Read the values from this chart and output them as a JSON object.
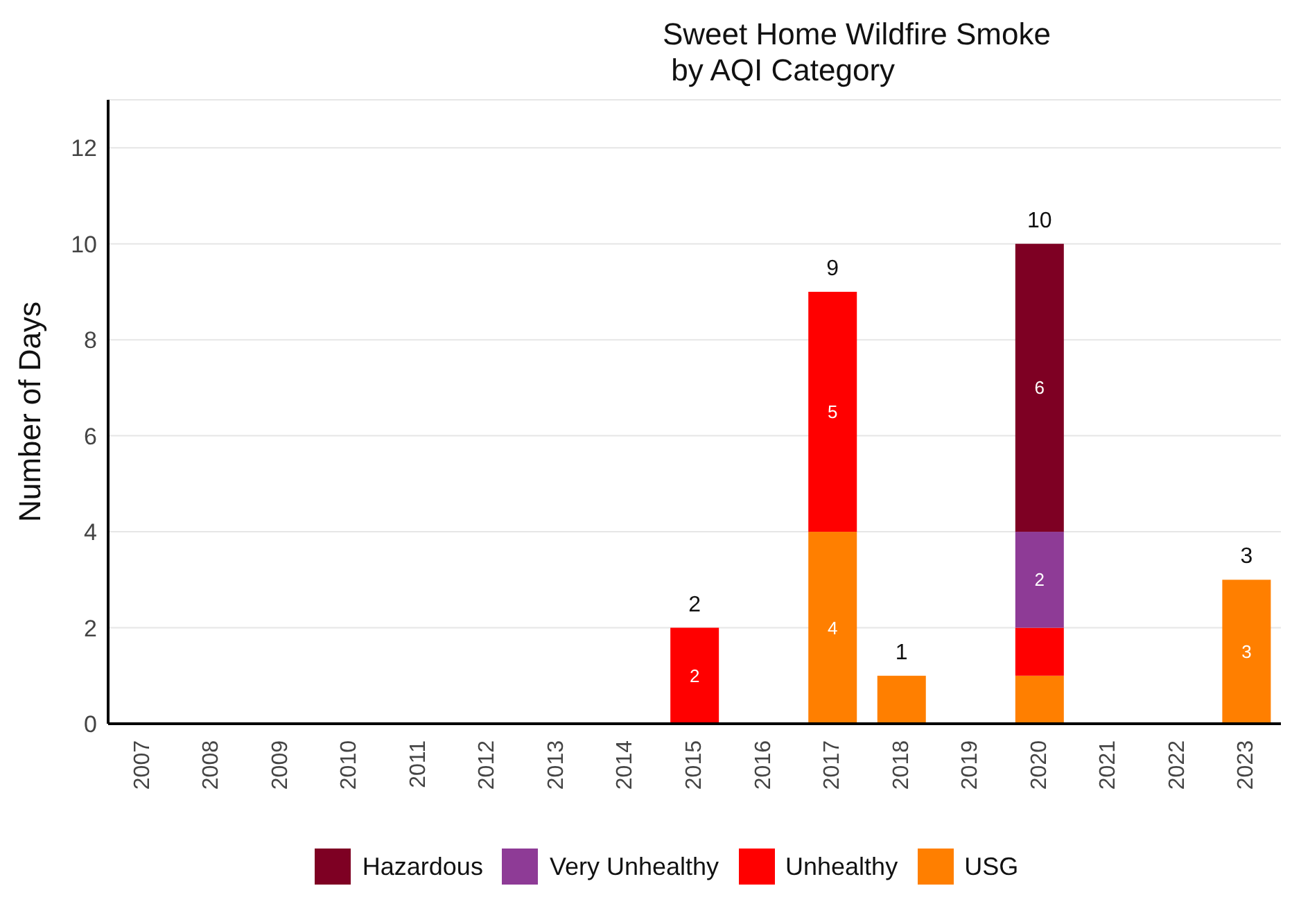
{
  "chart_data": {
    "type": "bar",
    "title": "Sweet Home Wildfire Smoke\n by AQI Category",
    "ylabel": "Number of Days",
    "stacked": true,
    "categories": [
      "2007",
      "2008",
      "2009",
      "2010",
      "2011",
      "2012",
      "2013",
      "2014",
      "2015",
      "2016",
      "2017",
      "2018",
      "2019",
      "2020",
      "2021",
      "2022",
      "2023"
    ],
    "series": [
      {
        "name": "USG",
        "color": "#ff7f00",
        "values": [
          null,
          null,
          null,
          null,
          null,
          null,
          null,
          null,
          null,
          null,
          4,
          1,
          null,
          1,
          null,
          null,
          3
        ],
        "value_labels": [
          null,
          null,
          null,
          null,
          null,
          null,
          null,
          null,
          null,
          null,
          "4",
          null,
          null,
          null,
          null,
          null,
          "3"
        ]
      },
      {
        "name": "Unhealthy",
        "color": "#ff0000",
        "values": [
          null,
          null,
          null,
          null,
          null,
          null,
          null,
          null,
          2,
          null,
          5,
          null,
          null,
          1,
          null,
          null,
          null
        ],
        "value_labels": [
          null,
          null,
          null,
          null,
          null,
          null,
          null,
          null,
          "2",
          null,
          "5",
          null,
          null,
          null,
          null,
          null,
          null
        ]
      },
      {
        "name": "Very Unhealthy",
        "color": "#8e3b96",
        "values": [
          null,
          null,
          null,
          null,
          null,
          null,
          null,
          null,
          null,
          null,
          null,
          null,
          null,
          2,
          null,
          null,
          null
        ],
        "value_labels": [
          null,
          null,
          null,
          null,
          null,
          null,
          null,
          null,
          null,
          null,
          null,
          null,
          null,
          "2",
          null,
          null,
          null
        ]
      },
      {
        "name": "Hazardous",
        "color": "#7e0023",
        "values": [
          null,
          null,
          null,
          null,
          null,
          null,
          null,
          null,
          null,
          null,
          null,
          null,
          null,
          6,
          null,
          null,
          null
        ],
        "value_labels": [
          null,
          null,
          null,
          null,
          null,
          null,
          null,
          null,
          null,
          null,
          null,
          null,
          null,
          "6",
          null,
          null,
          null
        ]
      }
    ],
    "totals": [
      null,
      null,
      null,
      null,
      null,
      null,
      null,
      null,
      "2",
      null,
      "9",
      "1",
      null,
      "10",
      null,
      null,
      "3"
    ],
    "ylim": [
      0,
      13
    ],
    "yticks": [
      0,
      2,
      4,
      6,
      8,
      10,
      12
    ],
    "grid": "y",
    "legend": "bottom"
  }
}
